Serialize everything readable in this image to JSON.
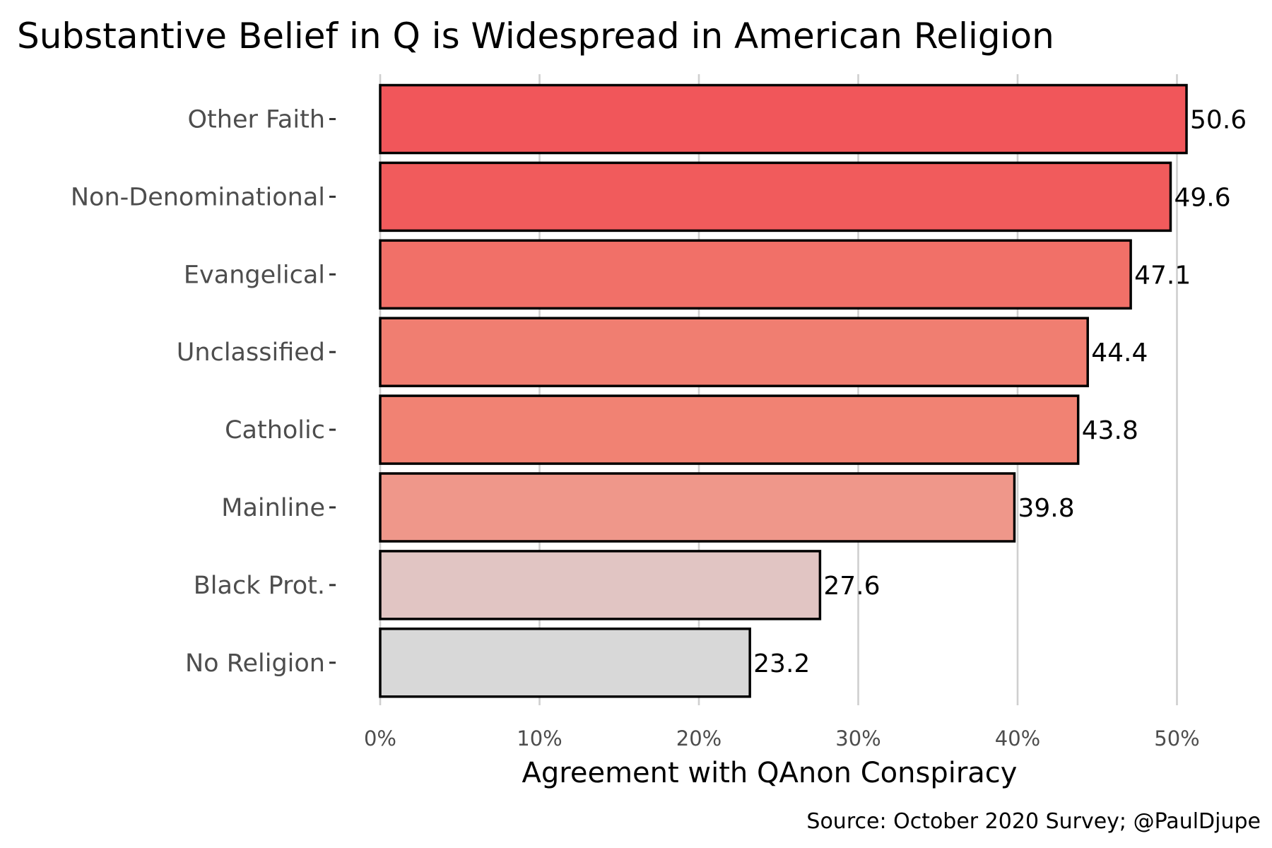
{
  "chart_data": {
    "type": "bar",
    "orientation": "horizontal",
    "title": "Substantive Belief in Q is Widespread in American Religion",
    "xlabel": "Agreement with QAnon Conspiracy",
    "ylabel": "",
    "caption": "Source: October 2020 Survey; @PaulDjupe",
    "categories": [
      "Other Faith",
      "Non-Denominational",
      "Evangelical",
      "Unclassified",
      "Catholic",
      "Mainline",
      "Black Prot.",
      "No Religion"
    ],
    "values": [
      50.6,
      49.6,
      47.1,
      44.4,
      43.8,
      39.8,
      27.6,
      23.2
    ],
    "data_labels": [
      "50.6",
      "49.6",
      "47.1",
      "44.4",
      "43.8",
      "39.8",
      "27.6",
      "23.2"
    ],
    "bar_colors": [
      "#f1565a",
      "#f15b5c",
      "#f17068",
      "#f07e71",
      "#f18273",
      "#ef978a",
      "#e1c5c3",
      "#d8d8d8"
    ],
    "xlim": [
      0,
      53.5
    ],
    "xticks": [
      0,
      10,
      20,
      30,
      40,
      50
    ],
    "xtick_labels": [
      "0%",
      "10%",
      "20%",
      "30%",
      "40%",
      "50%"
    ],
    "grid": "vertical major",
    "legend": "none"
  }
}
